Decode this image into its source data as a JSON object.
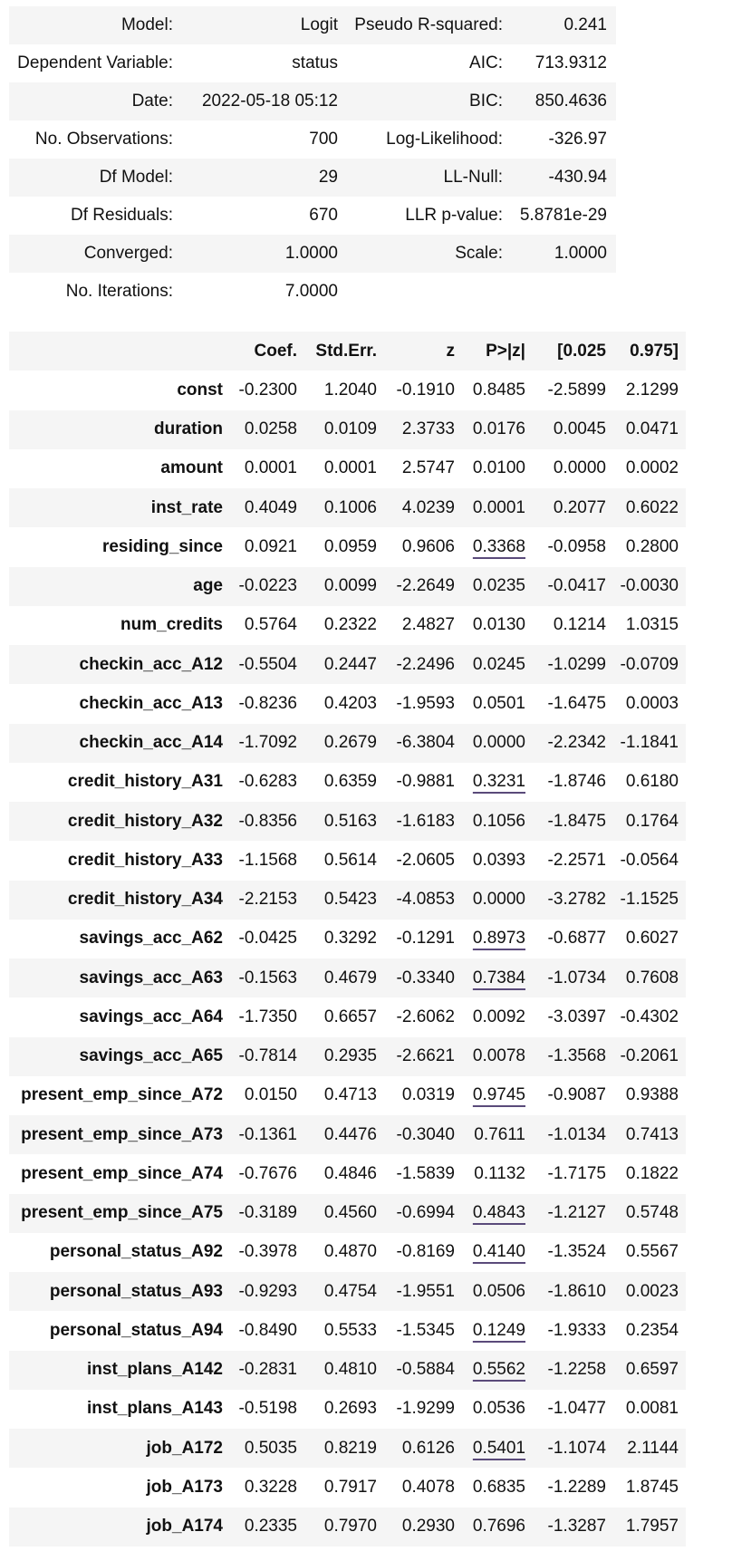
{
  "summary": {
    "rows": [
      {
        "label1": "Model:",
        "value1": "Logit",
        "label2": "Pseudo R-squared:",
        "value2": "0.241"
      },
      {
        "label1": "Dependent Variable:",
        "value1": "status",
        "label2": "AIC:",
        "value2": "713.9312"
      },
      {
        "label1": "Date:",
        "value1": "2022-05-18 05:12",
        "label2": "BIC:",
        "value2": "850.4636"
      },
      {
        "label1": "No. Observations:",
        "value1": "700",
        "label2": "Log-Likelihood:",
        "value2": "-326.97"
      },
      {
        "label1": "Df Model:",
        "value1": "29",
        "label2": "LL-Null:",
        "value2": "-430.94"
      },
      {
        "label1": "Df Residuals:",
        "value1": "670",
        "label2": "LLR p-value:",
        "value2": "5.8781e-29"
      },
      {
        "label1": "Converged:",
        "value1": "1.0000",
        "label2": "Scale:",
        "value2": "1.0000"
      },
      {
        "label1": "No. Iterations:",
        "value1": "7.0000",
        "label2": "",
        "value2": ""
      }
    ]
  },
  "coefficients": {
    "headers": [
      "",
      "Coef.",
      "Std.Err.",
      "z",
      "P>|z|",
      "[0.025",
      "0.975]"
    ],
    "rows": [
      {
        "name": "const",
        "coef": "-0.2300",
        "se": "1.2040",
        "z": "-0.1910",
        "p": "0.8485",
        "lo": "-2.5899",
        "hi": "2.1299"
      },
      {
        "name": "duration",
        "coef": "0.0258",
        "se": "0.0109",
        "z": "2.3733",
        "p": "0.0176",
        "lo": "0.0045",
        "hi": "0.0471"
      },
      {
        "name": "amount",
        "coef": "0.0001",
        "se": "0.0001",
        "z": "2.5747",
        "p": "0.0100",
        "lo": "0.0000",
        "hi": "0.0002"
      },
      {
        "name": "inst_rate",
        "coef": "0.4049",
        "se": "0.1006",
        "z": "4.0239",
        "p": "0.0001",
        "lo": "0.2077",
        "hi": "0.6022"
      },
      {
        "name": "residing_since",
        "coef": "0.0921",
        "se": "0.0959",
        "z": "0.9606",
        "p": "0.3368",
        "lo": "-0.0958",
        "hi": "0.2800"
      },
      {
        "name": "age",
        "coef": "-0.0223",
        "se": "0.0099",
        "z": "-2.2649",
        "p": "0.0235",
        "lo": "-0.0417",
        "hi": "-0.0030"
      },
      {
        "name": "num_credits",
        "coef": "0.5764",
        "se": "0.2322",
        "z": "2.4827",
        "p": "0.0130",
        "lo": "0.1214",
        "hi": "1.0315"
      },
      {
        "name": "checkin_acc_A12",
        "coef": "-0.5504",
        "se": "0.2447",
        "z": "-2.2496",
        "p": "0.0245",
        "lo": "-1.0299",
        "hi": "-0.0709"
      },
      {
        "name": "checkin_acc_A13",
        "coef": "-0.8236",
        "se": "0.4203",
        "z": "-1.9593",
        "p": "0.0501",
        "lo": "-1.6475",
        "hi": "0.0003"
      },
      {
        "name": "checkin_acc_A14",
        "coef": "-1.7092",
        "se": "0.2679",
        "z": "-6.3804",
        "p": "0.0000",
        "lo": "-2.2342",
        "hi": "-1.1841"
      },
      {
        "name": "credit_history_A31",
        "coef": "-0.6283",
        "se": "0.6359",
        "z": "-0.9881",
        "p": "0.3231",
        "lo": "-1.8746",
        "hi": "0.6180"
      },
      {
        "name": "credit_history_A32",
        "coef": "-0.8356",
        "se": "0.5163",
        "z": "-1.6183",
        "p": "0.1056",
        "lo": "-1.8475",
        "hi": "0.1764"
      },
      {
        "name": "credit_history_A33",
        "coef": "-1.1568",
        "se": "0.5614",
        "z": "-2.0605",
        "p": "0.0393",
        "lo": "-2.2571",
        "hi": "-0.0564"
      },
      {
        "name": "credit_history_A34",
        "coef": "-2.2153",
        "se": "0.5423",
        "z": "-4.0853",
        "p": "0.0000",
        "lo": "-3.2782",
        "hi": "-1.1525"
      },
      {
        "name": "savings_acc_A62",
        "coef": "-0.0425",
        "se": "0.3292",
        "z": "-0.1291",
        "p": "0.8973",
        "lo": "-0.6877",
        "hi": "0.6027"
      },
      {
        "name": "savings_acc_A63",
        "coef": "-0.1563",
        "se": "0.4679",
        "z": "-0.3340",
        "p": "0.7384",
        "lo": "-1.0734",
        "hi": "0.7608"
      },
      {
        "name": "savings_acc_A64",
        "coef": "-1.7350",
        "se": "0.6657",
        "z": "-2.6062",
        "p": "0.0092",
        "lo": "-3.0397",
        "hi": "-0.4302"
      },
      {
        "name": "savings_acc_A65",
        "coef": "-0.7814",
        "se": "0.2935",
        "z": "-2.6621",
        "p": "0.0078",
        "lo": "-1.3568",
        "hi": "-0.2061"
      },
      {
        "name": "present_emp_since_A72",
        "coef": "0.0150",
        "se": "0.4713",
        "z": "0.0319",
        "p": "0.9745",
        "lo": "-0.9087",
        "hi": "0.9388"
      },
      {
        "name": "present_emp_since_A73",
        "coef": "-0.1361",
        "se": "0.4476",
        "z": "-0.3040",
        "p": "0.7611",
        "lo": "-1.0134",
        "hi": "0.7413"
      },
      {
        "name": "present_emp_since_A74",
        "coef": "-0.7676",
        "se": "0.4846",
        "z": "-1.5839",
        "p": "0.1132",
        "lo": "-1.7175",
        "hi": "0.1822"
      },
      {
        "name": "present_emp_since_A75",
        "coef": "-0.3189",
        "se": "0.4560",
        "z": "-0.6994",
        "p": "0.4843",
        "lo": "-1.2127",
        "hi": "0.5748"
      },
      {
        "name": "personal_status_A92",
        "coef": "-0.3978",
        "se": "0.4870",
        "z": "-0.8169",
        "p": "0.4140",
        "lo": "-1.3524",
        "hi": "0.5567"
      },
      {
        "name": "personal_status_A93",
        "coef": "-0.9293",
        "se": "0.4754",
        "z": "-1.9551",
        "p": "0.0506",
        "lo": "-1.8610",
        "hi": "0.0023"
      },
      {
        "name": "personal_status_A94",
        "coef": "-0.8490",
        "se": "0.5533",
        "z": "-1.5345",
        "p": "0.1249",
        "lo": "-1.9333",
        "hi": "0.2354"
      },
      {
        "name": "inst_plans_A142",
        "coef": "-0.2831",
        "se": "0.4810",
        "z": "-0.5884",
        "p": "0.5562",
        "lo": "-1.2258",
        "hi": "0.6597"
      },
      {
        "name": "inst_plans_A143",
        "coef": "-0.5198",
        "se": "0.2693",
        "z": "-1.9299",
        "p": "0.0536",
        "lo": "-1.0477",
        "hi": "0.0081"
      },
      {
        "name": "job_A172",
        "coef": "0.5035",
        "se": "0.8219",
        "z": "0.6126",
        "p": "0.5401",
        "lo": "-1.1074",
        "hi": "2.1144"
      },
      {
        "name": "job_A173",
        "coef": "0.3228",
        "se": "0.7917",
        "z": "0.4078",
        "p": "0.6835",
        "lo": "-1.2289",
        "hi": "1.8745"
      },
      {
        "name": "job_A174",
        "coef": "0.2335",
        "se": "0.7970",
        "z": "0.2930",
        "p": "0.7696",
        "lo": "-1.3287",
        "hi": "1.7957"
      }
    ],
    "underlined_p_rows": [
      4,
      10,
      14,
      15,
      18,
      21,
      22,
      24,
      25,
      27
    ]
  }
}
